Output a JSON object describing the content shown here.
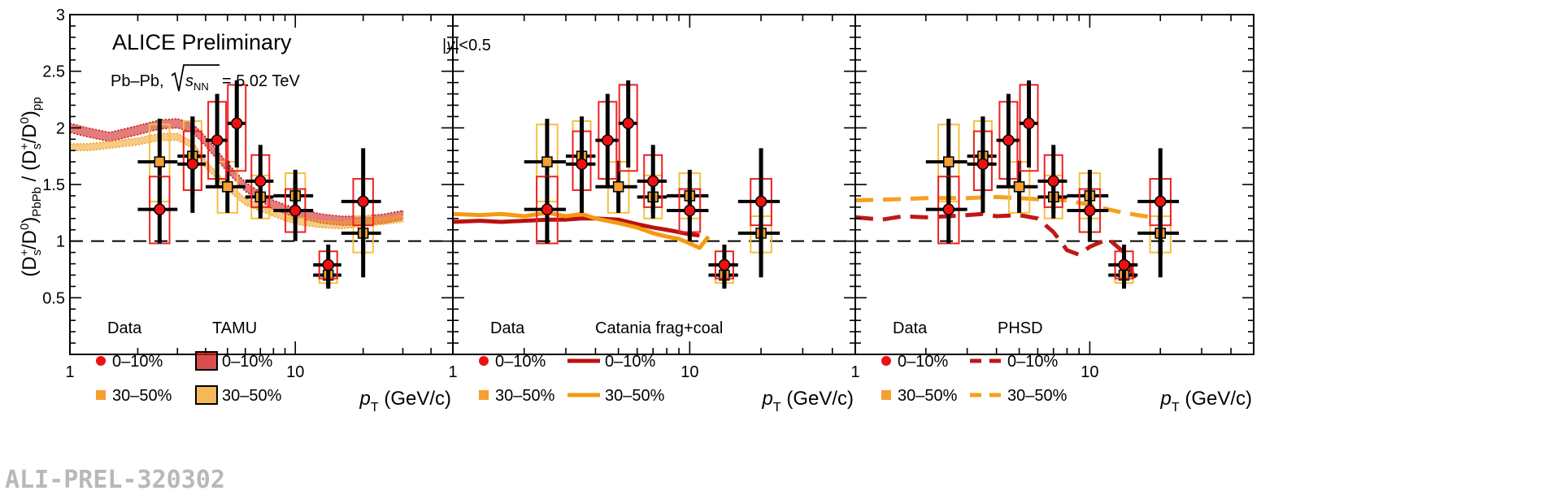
{
  "figure": {
    "watermark": "ALI-PREL-320302",
    "colors": {
      "central": "#ee1111",
      "semi": "#f5a030",
      "box_central": "#ee2222",
      "box_semi": "#f5c040",
      "tamu_central": "#cc1111",
      "tamu_semi": "#f0a020",
      "catania_central": "#bb1111",
      "catania_semi": "#f59a10",
      "phsd_central": "#c01818",
      "phsd_semi": "#f5a020"
    }
  },
  "chart_data": {
    "type": "scatter",
    "title": "ALICE Preliminary",
    "system": "Pb–Pb,",
    "energy_label": "= 5.02 TeV",
    "rapidity": "<0.5",
    "ylabel": "(Ds+/D0)PbPb / (Ds+/D0)pp",
    "xlabel": "(GeV/c)",
    "xscale": "log",
    "xlim": [
      1,
      50
    ],
    "ylim": [
      0,
      3
    ],
    "reference_line": 1,
    "y_ticks": [
      "0.5",
      "1",
      "1.5",
      "2",
      "2.5",
      "3"
    ],
    "x_ticks": [
      "1",
      "10"
    ],
    "series": [
      {
        "name": "0–10%",
        "marker": "circle",
        "points": [
          {
            "x": 2.5,
            "xlo": 2.0,
            "xhi": 3.0,
            "y": 1.28,
            "stat_lo": 0.98,
            "stat_hi": 1.57,
            "sys_lo": 0.98,
            "sys_hi": 1.57
          },
          {
            "x": 3.5,
            "xlo": 3.0,
            "xhi": 4.0,
            "y": 1.68,
            "stat_lo": 1.25,
            "stat_hi": 2.1,
            "sys_lo": 1.45,
            "sys_hi": 1.97
          },
          {
            "x": 4.5,
            "xlo": 4.0,
            "xhi": 5.0,
            "y": 1.89,
            "stat_lo": 1.47,
            "stat_hi": 2.3,
            "sys_lo": 1.55,
            "sys_hi": 2.23
          },
          {
            "x": 5.5,
            "xlo": 5.0,
            "xhi": 6.0,
            "y": 2.04,
            "stat_lo": 1.65,
            "stat_hi": 2.42,
            "sys_lo": 1.62,
            "sys_hi": 2.38
          },
          {
            "x": 7.0,
            "xlo": 6.0,
            "xhi": 8.0,
            "y": 1.53,
            "stat_lo": 1.25,
            "stat_hi": 1.85,
            "sys_lo": 1.3,
            "sys_hi": 1.76
          },
          {
            "x": 10.0,
            "xlo": 8.0,
            "xhi": 12.0,
            "y": 1.27,
            "stat_lo": 1.0,
            "stat_hi": 1.55,
            "sys_lo": 1.08,
            "sys_hi": 1.46
          },
          {
            "x": 14.0,
            "xlo": 12.0,
            "xhi": 16.0,
            "y": 0.79,
            "stat_lo": 0.58,
            "stat_hi": 0.97,
            "sys_lo": 0.67,
            "sys_hi": 0.91
          },
          {
            "x": 20.0,
            "xlo": 16.0,
            "xhi": 24.0,
            "y": 1.35,
            "stat_lo": 0.88,
            "stat_hi": 1.82,
            "sys_lo": 1.14,
            "sys_hi": 1.55
          }
        ]
      },
      {
        "name": "30–50%",
        "marker": "square",
        "points": [
          {
            "x": 2.5,
            "xlo": 2.0,
            "xhi": 3.0,
            "y": 1.7,
            "stat_lo": 1.3,
            "stat_hi": 2.08,
            "sys_lo": 1.35,
            "sys_hi": 2.03
          },
          {
            "x": 3.5,
            "xlo": 3.0,
            "xhi": 4.0,
            "y": 1.75,
            "stat_lo": 1.4,
            "stat_hi": 2.1,
            "sys_lo": 1.45,
            "sys_hi": 2.06
          },
          {
            "x": 5.0,
            "xlo": 4.0,
            "xhi": 6.0,
            "y": 1.48,
            "stat_lo": 1.25,
            "stat_hi": 1.71,
            "sys_lo": 1.25,
            "sys_hi": 1.7
          },
          {
            "x": 7.0,
            "xlo": 6.0,
            "xhi": 8.0,
            "y": 1.39,
            "stat_lo": 1.2,
            "stat_hi": 1.59,
            "sys_lo": 1.2,
            "sys_hi": 1.58
          },
          {
            "x": 10.0,
            "xlo": 8.0,
            "xhi": 12.0,
            "y": 1.4,
            "stat_lo": 1.17,
            "stat_hi": 1.63,
            "sys_lo": 1.2,
            "sys_hi": 1.6
          },
          {
            "x": 14.0,
            "xlo": 12.0,
            "xhi": 16.0,
            "y": 0.7,
            "stat_lo": 0.6,
            "stat_hi": 0.8,
            "sys_lo": 0.63,
            "sys_hi": 0.79
          },
          {
            "x": 20.0,
            "xlo": 16.0,
            "xhi": 24.0,
            "y": 1.07,
            "stat_lo": 0.68,
            "stat_hi": 1.35,
            "sys_lo": 0.9,
            "sys_hi": 1.22
          }
        ]
      }
    ],
    "panels": [
      {
        "model": "TAMU",
        "style": "band",
        "legend": {
          "data_header": "Data",
          "model_header": "TAMU",
          "central_label": "0–10%",
          "semi_label": "30–50%"
        },
        "curves": [
          {
            "name": "0–10%",
            "points": [
              [
                1.0,
                2.0
              ],
              [
                1.2,
                1.96
              ],
              [
                1.5,
                1.92
              ],
              [
                2.0,
                1.98
              ],
              [
                2.5,
                2.03
              ],
              [
                3.0,
                2.04
              ],
              [
                3.5,
                2.0
              ],
              [
                4.0,
                1.88
              ],
              [
                5.0,
                1.65
              ],
              [
                6.0,
                1.48
              ],
              [
                8.0,
                1.32
              ],
              [
                10.0,
                1.25
              ],
              [
                13.0,
                1.2
              ],
              [
                16.0,
                1.18
              ],
              [
                20.0,
                1.18
              ],
              [
                25.0,
                1.2
              ],
              [
                30.0,
                1.23
              ]
            ],
            "halfwidth": 0.04
          },
          {
            "name": "30–50%",
            "points": [
              [
                1.0,
                1.83
              ],
              [
                1.2,
                1.83
              ],
              [
                1.5,
                1.85
              ],
              [
                2.0,
                1.88
              ],
              [
                2.5,
                1.92
              ],
              [
                3.0,
                1.92
              ],
              [
                3.5,
                1.85
              ],
              [
                4.0,
                1.68
              ],
              [
                5.0,
                1.48
              ],
              [
                6.0,
                1.35
              ],
              [
                8.0,
                1.25
              ],
              [
                10.0,
                1.18
              ],
              [
                13.0,
                1.15
              ],
              [
                16.0,
                1.14
              ],
              [
                20.0,
                1.16
              ],
              [
                25.0,
                1.18
              ],
              [
                30.0,
                1.2
              ]
            ],
            "halfwidth": 0.03
          }
        ]
      },
      {
        "model": "Catania frag+coal",
        "style": "line",
        "legend": {
          "data_header": "Data",
          "model_header": "Catania frag+coal",
          "central_label": "0–10%",
          "semi_label": "30–50%"
        },
        "curves": [
          {
            "name": "0–10%",
            "points": [
              [
                1.0,
                1.17
              ],
              [
                1.3,
                1.18
              ],
              [
                1.6,
                1.17
              ],
              [
                2.0,
                1.18
              ],
              [
                2.5,
                1.19
              ],
              [
                3.0,
                1.19
              ],
              [
                3.5,
                1.2
              ],
              [
                4.0,
                1.2
              ],
              [
                5.0,
                1.19
              ],
              [
                6.0,
                1.15
              ],
              [
                7.0,
                1.12
              ],
              [
                8.0,
                1.1
              ],
              [
                9.0,
                1.08
              ],
              [
                10.0,
                1.06
              ],
              [
                11.0,
                1.05
              ]
            ]
          },
          {
            "name": "30–50%",
            "points": [
              [
                1.0,
                1.24
              ],
              [
                1.3,
                1.23
              ],
              [
                1.6,
                1.24
              ],
              [
                2.0,
                1.22
              ],
              [
                2.5,
                1.25
              ],
              [
                3.0,
                1.22
              ],
              [
                3.5,
                1.24
              ],
              [
                4.0,
                1.2
              ],
              [
                5.0,
                1.16
              ],
              [
                6.0,
                1.12
              ],
              [
                7.0,
                1.07
              ],
              [
                8.0,
                1.04
              ],
              [
                9.0,
                1.02
              ],
              [
                10.0,
                0.98
              ],
              [
                11.0,
                0.94
              ],
              [
                12.0,
                1.04
              ]
            ]
          }
        ]
      },
      {
        "model": "PHSD",
        "style": "dashed",
        "legend": {
          "data_header": "Data",
          "model_header": "PHSD",
          "central_label": "0–10%",
          "semi_label": "30–50%"
        },
        "curves": [
          {
            "name": "0–10%",
            "points": [
              [
                1.0,
                1.21
              ],
              [
                1.3,
                1.19
              ],
              [
                1.6,
                1.22
              ],
              [
                2.0,
                1.21
              ],
              [
                2.5,
                1.22
              ],
              [
                3.0,
                1.23
              ],
              [
                3.5,
                1.24
              ],
              [
                4.0,
                1.22
              ],
              [
                5.0,
                1.23
              ],
              [
                6.0,
                1.2
              ],
              [
                7.0,
                1.08
              ],
              [
                8.0,
                0.92
              ],
              [
                9.0,
                0.88
              ],
              [
                10.0,
                0.95
              ],
              [
                12.0,
                1.02
              ],
              [
                14.0,
                0.9
              ],
              [
                16.0,
                0.6
              ]
            ]
          },
          {
            "name": "30–50%",
            "points": [
              [
                1.0,
                1.36
              ],
              [
                1.5,
                1.37
              ],
              [
                2.0,
                1.38
              ],
              [
                3.0,
                1.38
              ],
              [
                4.0,
                1.39
              ],
              [
                5.0,
                1.38
              ],
              [
                6.0,
                1.37
              ],
              [
                8.0,
                1.36
              ],
              [
                10.0,
                1.32
              ],
              [
                12.0,
                1.28
              ],
              [
                14.0,
                1.25
              ],
              [
                16.0,
                1.23
              ],
              [
                20.0,
                1.2
              ]
            ]
          }
        ]
      }
    ]
  }
}
